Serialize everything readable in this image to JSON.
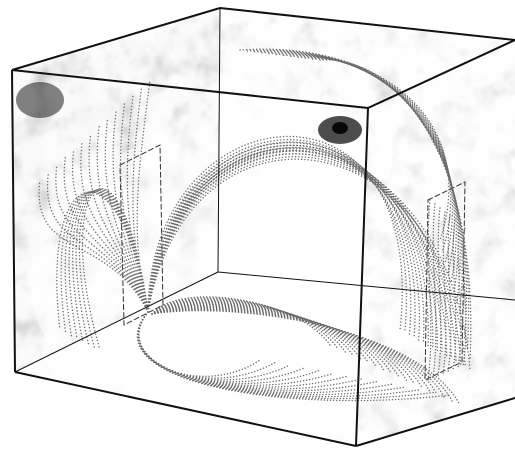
{
  "figure": {
    "background": "#ffffff",
    "edge_color": "#111111",
    "field_line_color": "#6a6a6a",
    "dashed_box_color": "#333333",
    "texture_dark": "#2a2a2a",
    "texture_light": "#f4f4f4"
  }
}
